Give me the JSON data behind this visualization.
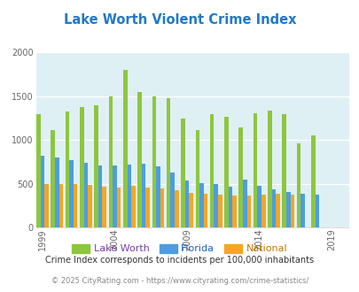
{
  "title": "Lake Worth Violent Crime Index",
  "title_color": "#2079c7",
  "years": [
    1999,
    2000,
    2001,
    2002,
    2003,
    2004,
    2005,
    2006,
    2007,
    2008,
    2009,
    2010,
    2011,
    2012,
    2013,
    2014,
    2015,
    2016,
    2017,
    2018,
    2019,
    2020
  ],
  "lake_worth": [
    1300,
    1120,
    1330,
    1380,
    1400,
    1500,
    1800,
    1550,
    1500,
    1480,
    1250,
    1120,
    1300,
    1270,
    1150,
    1310,
    1340,
    1300,
    960,
    1050,
    null,
    null
  ],
  "florida": [
    820,
    800,
    770,
    740,
    710,
    710,
    720,
    730,
    700,
    630,
    540,
    510,
    500,
    470,
    550,
    480,
    440,
    410,
    390,
    380,
    null,
    null
  ],
  "national": [
    500,
    500,
    500,
    490,
    470,
    460,
    480,
    460,
    450,
    430,
    400,
    390,
    380,
    370,
    370,
    380,
    390,
    380,
    null,
    null,
    null,
    null
  ],
  "lake_worth_color": "#8dc63f",
  "florida_color": "#4d9de0",
  "national_color": "#f5a623",
  "bg_color": "#dff0f5",
  "ylim": [
    0,
    2000
  ],
  "yticks": [
    0,
    500,
    1000,
    1500,
    2000
  ],
  "xlabel_ticks": [
    1999,
    2004,
    2009,
    2014,
    2019
  ],
  "footnote1": "Crime Index corresponds to incidents per 100,000 inhabitants",
  "footnote2": "© 2025 CityRating.com - https://www.cityrating.com/crime-statistics/",
  "legend_labels": [
    "Lake Worth",
    "Florida",
    "National"
  ],
  "legend_label_colors": [
    "#7b3fa0",
    "#2060c0",
    "#c07800"
  ],
  "bar_width": 0.28
}
